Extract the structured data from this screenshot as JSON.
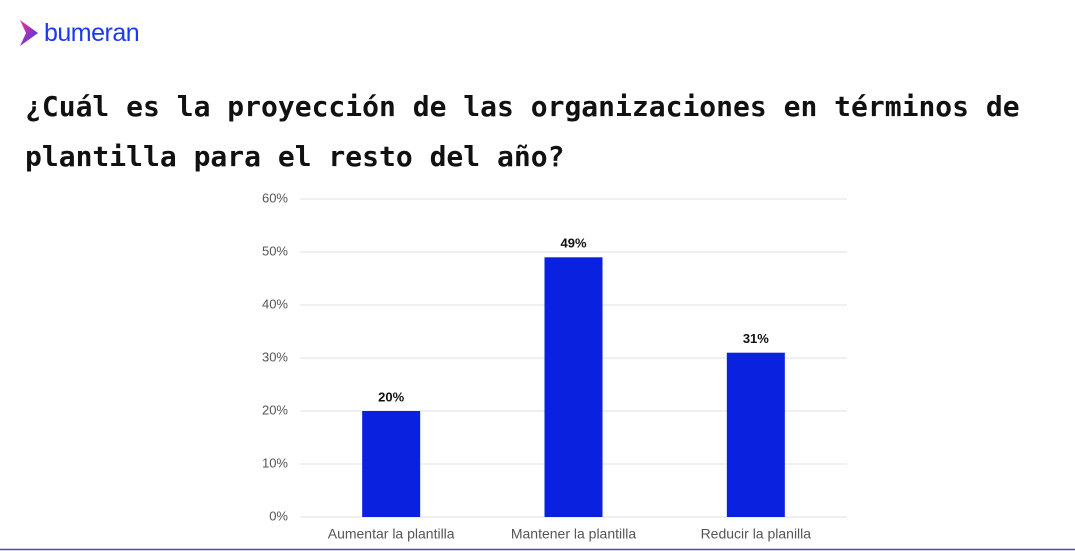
{
  "logo": "bumeran",
  "chart_data": {
    "type": "bar",
    "title": "¿Cuál es la proyección de las organizaciones en términos de plantilla para el resto del año?",
    "categories": [
      "Aumentar la plantilla",
      "Mantener la plantilla",
      "Reducir la planilla"
    ],
    "values": [
      20,
      49,
      31
    ],
    "value_labels": [
      "20%",
      "49%",
      "31%"
    ],
    "color": "#0a22e0",
    "ylim": [
      0,
      60
    ],
    "yticks": [
      {
        "value": 0,
        "label": "0%"
      },
      {
        "value": 10,
        "label": "10%"
      },
      {
        "value": 20,
        "label": "20%"
      },
      {
        "value": 30,
        "label": "30%"
      },
      {
        "value": 40,
        "label": "40%"
      },
      {
        "value": 50,
        "label": "50%"
      },
      {
        "value": 60,
        "label": "60%"
      }
    ],
    "grid": true
  }
}
